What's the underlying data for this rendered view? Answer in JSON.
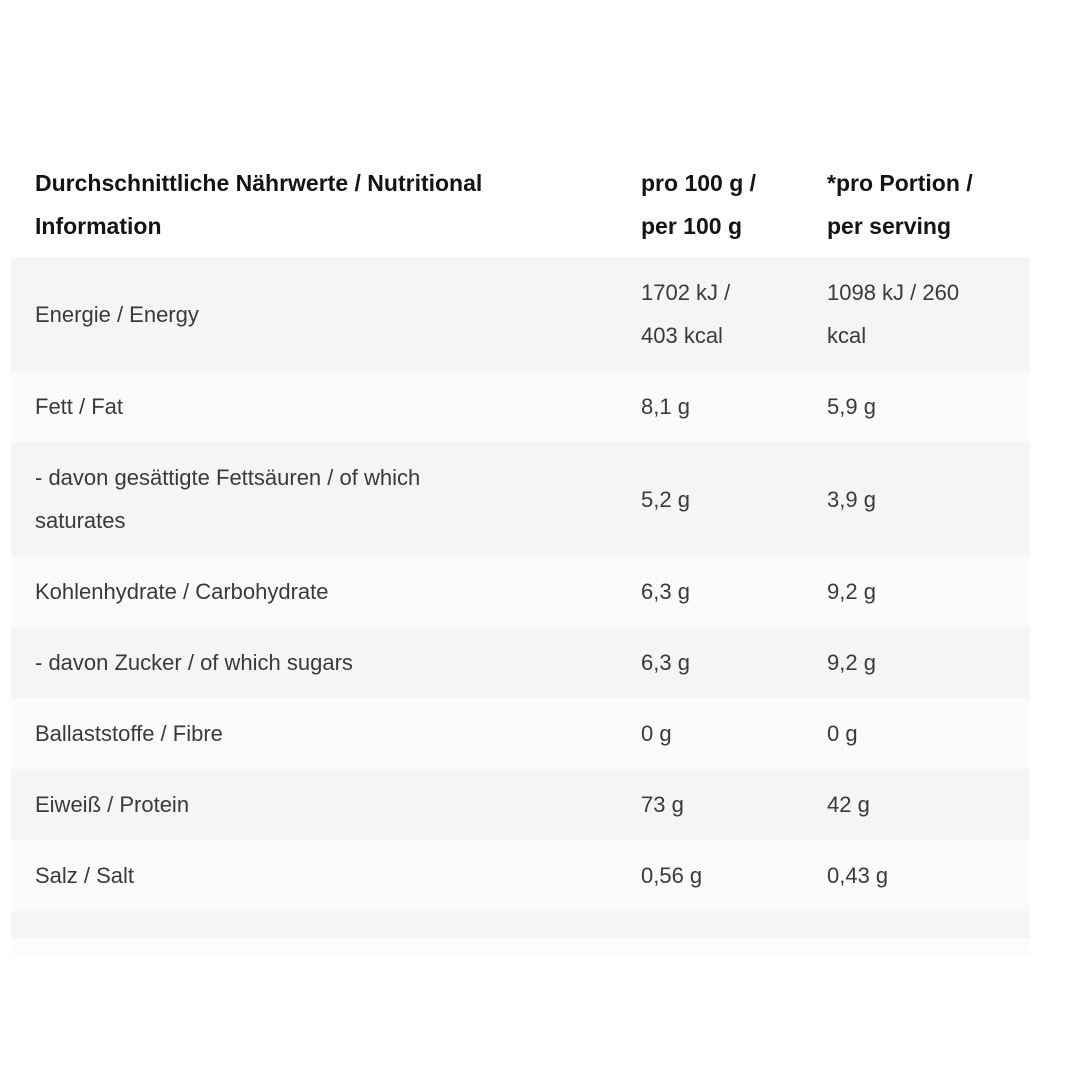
{
  "table": {
    "header": {
      "label": "Durchschnittliche Nährwerte / Nutritional\nInformation",
      "per_100g": "pro 100 g /\nper 100 g",
      "per_serving": "*pro Portion /\nper serving"
    },
    "rows": [
      {
        "label": "Energie / Energy",
        "per100": "1702 kJ /\n403 kcal",
        "serving": "1098 kJ / 260\nkcal"
      },
      {
        "label": "Fett / Fat",
        "per100": "8,1 g",
        "serving": "5,9 g"
      },
      {
        "label": "- davon gesättigte Fettsäuren / of which\nsaturates",
        "per100": "5,2 g",
        "serving": "3,9 g"
      },
      {
        "label": "Kohlenhydrate / Carbohydrate",
        "per100": "6,3 g",
        "serving": "9,2 g"
      },
      {
        "label": "- davon Zucker / of which sugars",
        "per100": "6,3 g",
        "serving": "9,2 g"
      },
      {
        "label": "Ballaststoffe / Fibre",
        "per100": "0 g",
        "serving": "0 g"
      },
      {
        "label": "Eiweiß / Protein",
        "per100": "73 g",
        "serving": "42 g"
      },
      {
        "label": "Salz / Salt",
        "per100": "0,56 g",
        "serving": "0,43 g"
      }
    ],
    "colors": {
      "row_gray": "#f5f5f6",
      "row_white": "#fbfbfb",
      "header_text": "#141414",
      "body_text": "#3a3a3a"
    }
  }
}
